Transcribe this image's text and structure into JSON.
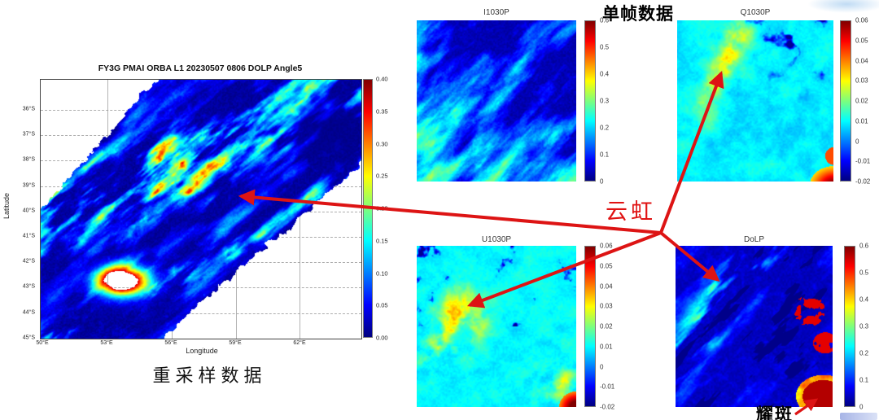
{
  "annotations": {
    "single_frame_label": "单帧数据",
    "resampled_label": "重采样数据",
    "cloudbow_label": "云虹",
    "glint_label": "耀斑"
  },
  "colors": {
    "arrow_red": "#dd1414",
    "cloudbow_text_red": "#e01212"
  },
  "chart_data": [
    {
      "id": "resampled_map",
      "type": "heatmap",
      "title": "FY3G PMAI ORBA L1 20230507 0806 DOLP Angle5",
      "xlabel": "Longitude",
      "ylabel": "Latitude",
      "x_ticks": [
        "50°E",
        "53°E",
        "56°E",
        "59°E",
        "62°E"
      ],
      "y_ticks": [
        "36°S",
        "37°S",
        "38°S",
        "39°S",
        "40°S",
        "41°S",
        "42°S",
        "43°S",
        "44°S",
        "45°S"
      ],
      "grid": true,
      "colormap": "jet",
      "value_range": [
        0.0,
        0.4
      ],
      "colorbar_ticks": [
        "0.40",
        "0.35",
        "0.30",
        "0.25",
        "0.20",
        "0.15",
        "0.10",
        "0.05",
        "0.00"
      ]
    },
    {
      "id": "I1030P",
      "type": "heatmap",
      "title": "I1030P",
      "grid": false,
      "colormap": "jet",
      "value_range": [
        0,
        0.6
      ],
      "colorbar_ticks": [
        "0.6",
        "0.5",
        "0.4",
        "0.3",
        "0.2",
        "0.1",
        "0"
      ]
    },
    {
      "id": "Q1030P",
      "type": "heatmap",
      "title": "Q1030P",
      "grid": false,
      "colormap": "jet",
      "value_range": [
        -0.02,
        0.06
      ],
      "colorbar_ticks": [
        "0.06",
        "0.05",
        "0.04",
        "0.03",
        "0.02",
        "0.01",
        "0",
        "-0.01",
        "-0.02"
      ]
    },
    {
      "id": "U1030P",
      "type": "heatmap",
      "title": "U1030P",
      "grid": false,
      "colormap": "jet",
      "value_range": [
        -0.02,
        0.06
      ],
      "colorbar_ticks": [
        "0.06",
        "0.05",
        "0.04",
        "0.03",
        "0.02",
        "0.01",
        "0",
        "-0.01",
        "-0.02"
      ]
    },
    {
      "id": "DoLP",
      "type": "heatmap",
      "title": "DoLP",
      "grid": false,
      "colormap": "jet",
      "value_range": [
        0,
        0.6
      ],
      "colorbar_ticks": [
        "0.6",
        "0.5",
        "0.4",
        "0.3",
        "0.2",
        "0.1",
        "0"
      ]
    }
  ]
}
